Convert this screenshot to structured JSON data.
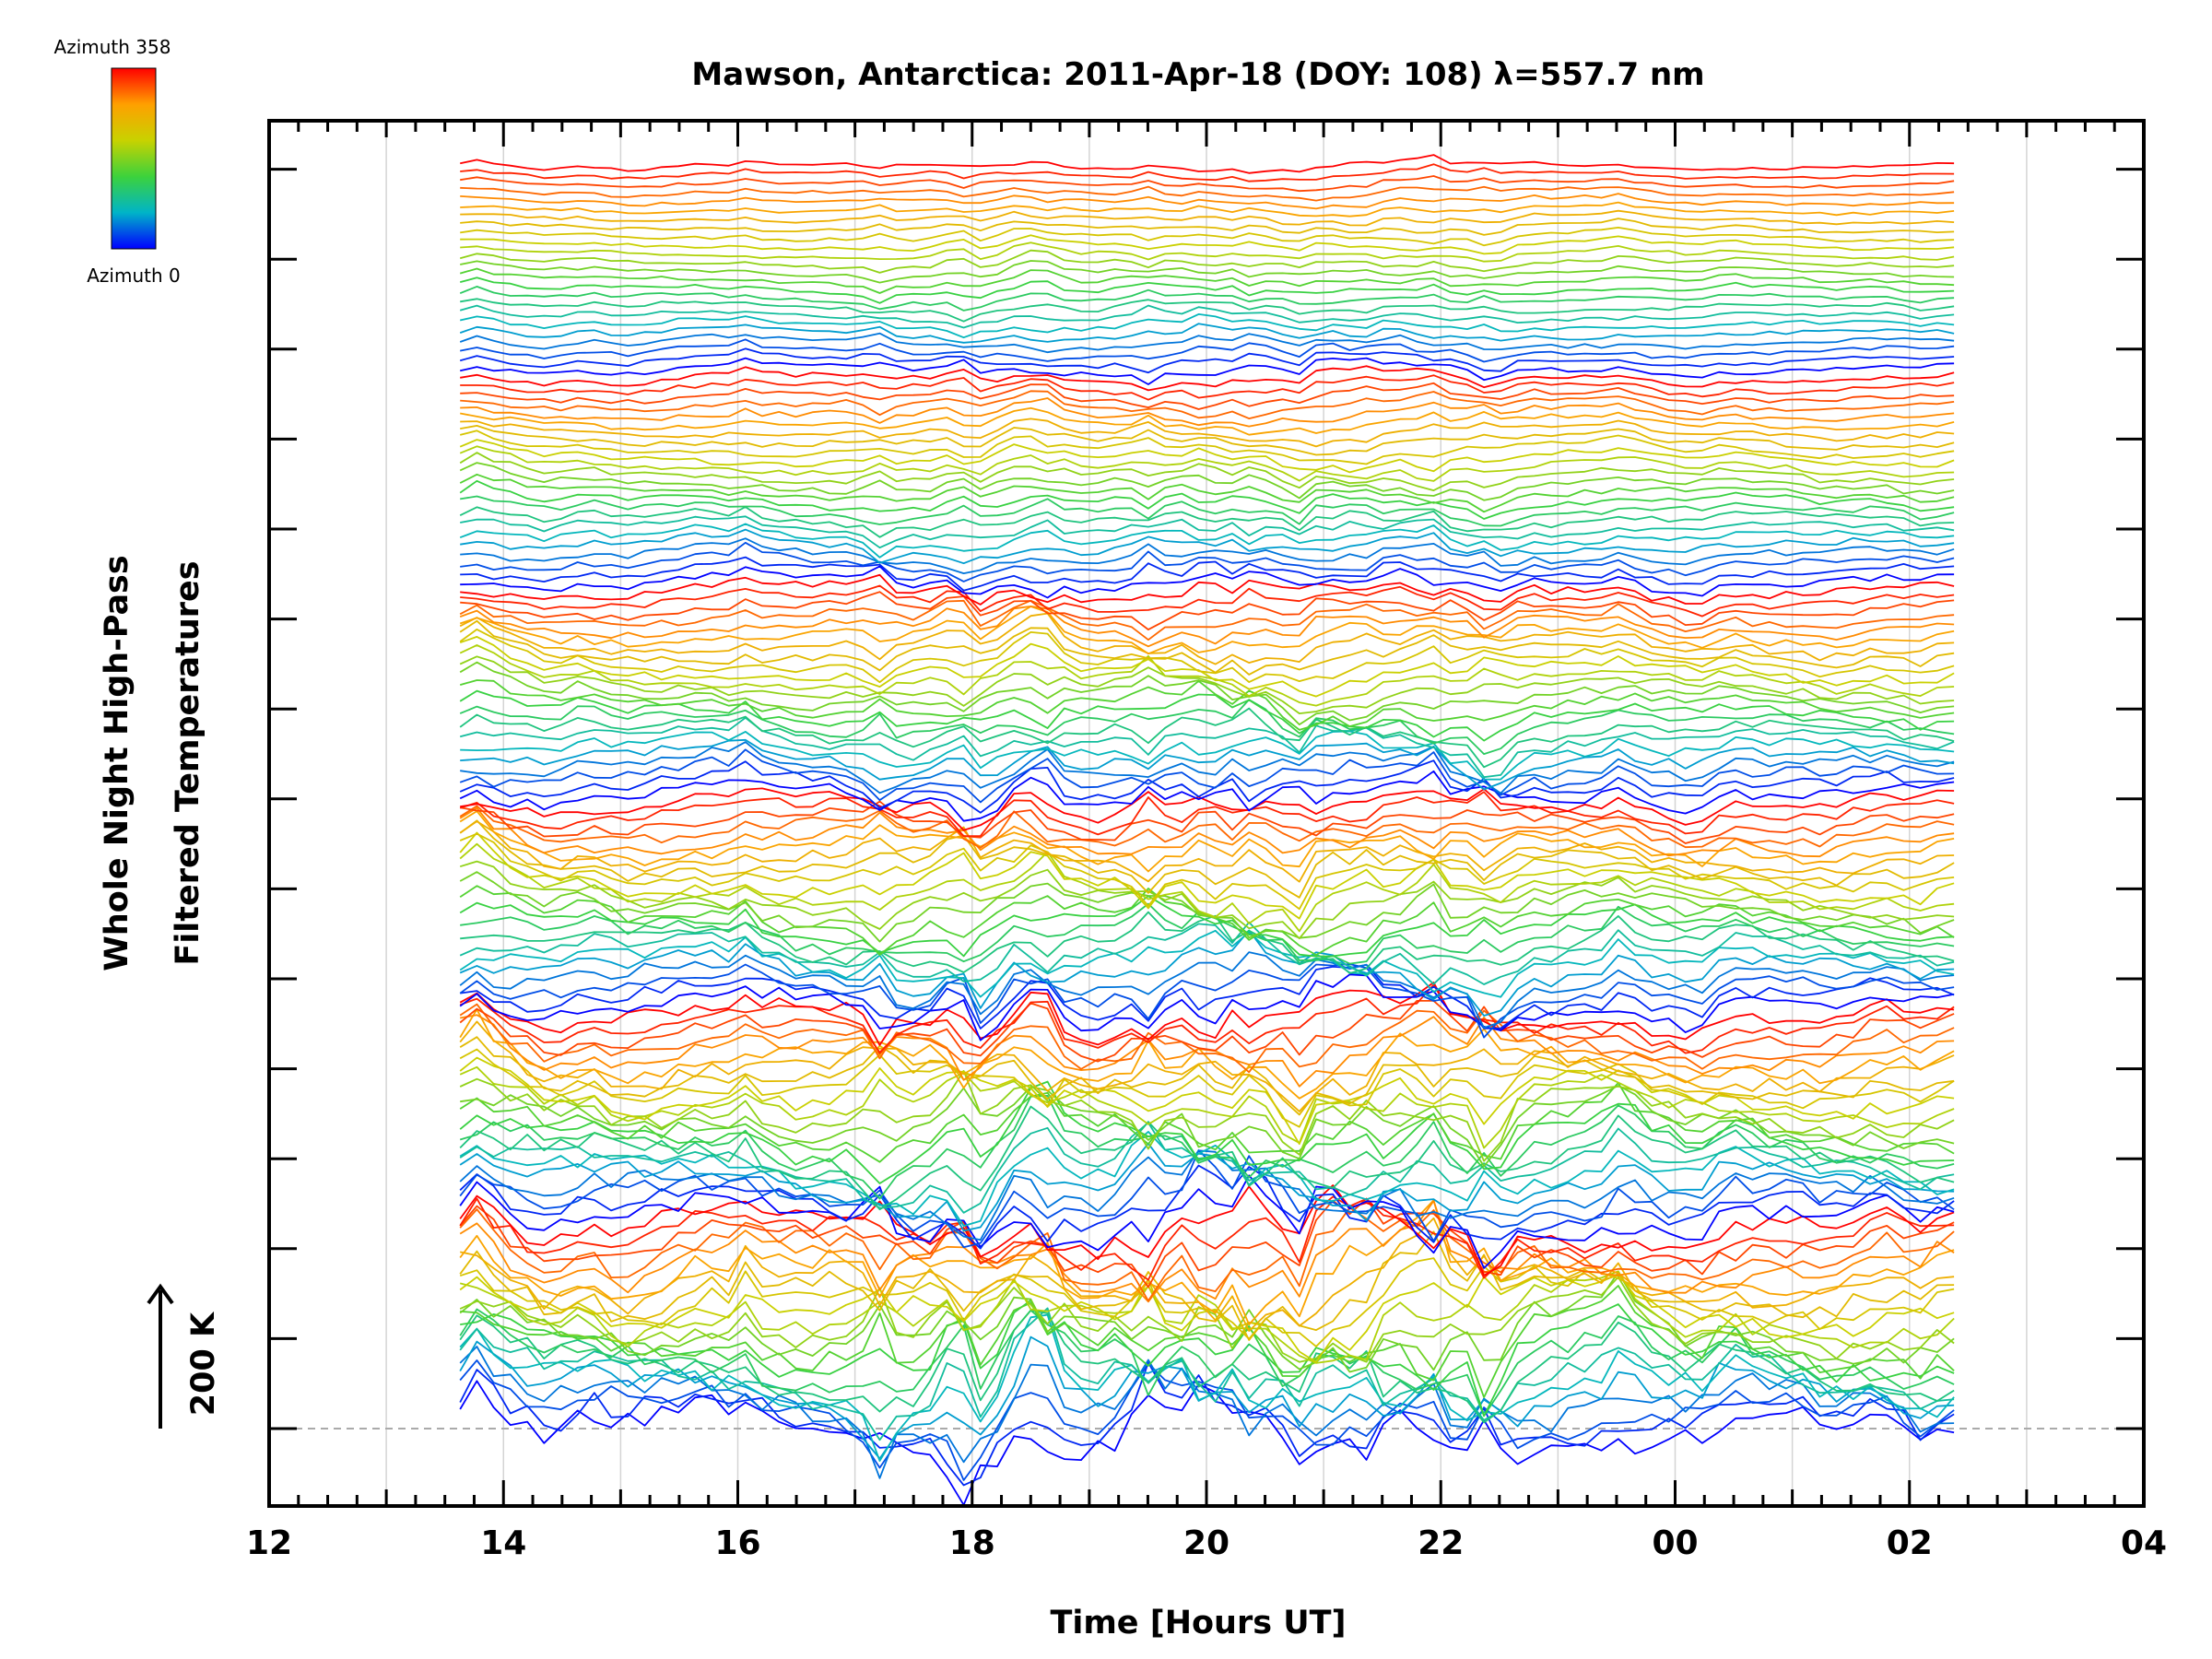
{
  "chart_data": {
    "type": "line",
    "title": "Mawson, Antarctica: 2011-Apr-18 (DOY: 108) λ=557.7 nm",
    "xlabel": "Time [Hours UT]",
    "ylabel_line1": "Whole Night High-Pass",
    "ylabel_line2": "Filtered Temperatures",
    "scale_bar_label": "200 K",
    "scale_bar_kelvin": 200,
    "x_tick_labels": [
      "12",
      "14",
      "16",
      "18",
      "20",
      "22",
      "00",
      "02",
      "04"
    ],
    "xlim_hours": [
      12,
      28
    ],
    "data_time_range_hours": [
      13.63,
      26.38
    ],
    "grid": true,
    "colorbar": {
      "label_top": "Azimuth 358",
      "label_bottom": "Azimuth 0",
      "colors": [
        "#0000ff",
        "#00b4c8",
        "#3cd23c",
        "#c8d200",
        "#ffa000",
        "#ff0000"
      ]
    },
    "series_count": 144,
    "baseline_dashed": true
  }
}
